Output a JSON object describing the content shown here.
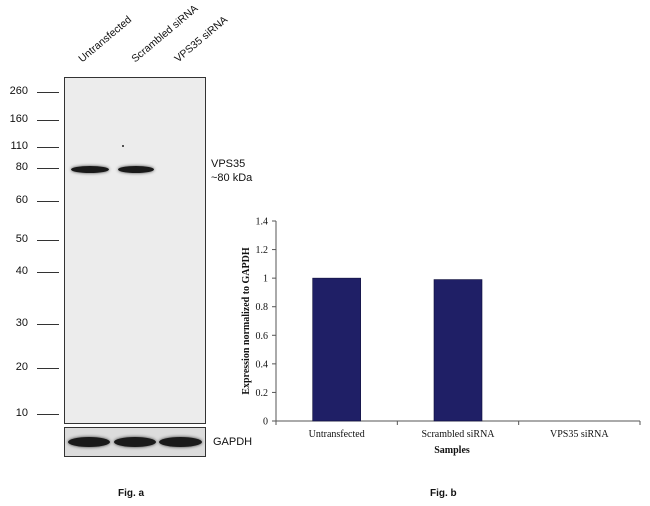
{
  "blot": {
    "lanes": [
      "Untransfected",
      "Scrambled siRNA",
      "VPS35 siRNA"
    ],
    "markers": [
      "260",
      "160",
      "110",
      "80",
      "60",
      "50",
      "40",
      "30",
      "20",
      "10"
    ],
    "target_label_line1": "VPS35",
    "target_label_line2": "~80 kDa",
    "loading_control": "GAPDH",
    "fig_label": "Fig. a"
  },
  "chart_data": {
    "type": "bar",
    "categories": [
      "Untransfected",
      "Scrambled siRNA",
      "VPS35 siRNA"
    ],
    "values": [
      1.0,
      0.99,
      0.0
    ],
    "title": "",
    "xlabel": "Samples",
    "ylabel": "Expression normalized to GAPDH",
    "ylim": [
      0,
      1.4
    ],
    "yticks": [
      "0",
      "0.2",
      "0.4",
      "0.6",
      "0.8",
      "1",
      "1.2",
      "1.4"
    ],
    "grid": false,
    "bar_color": "#1f1f66",
    "fig_label": "Fig. b"
  }
}
